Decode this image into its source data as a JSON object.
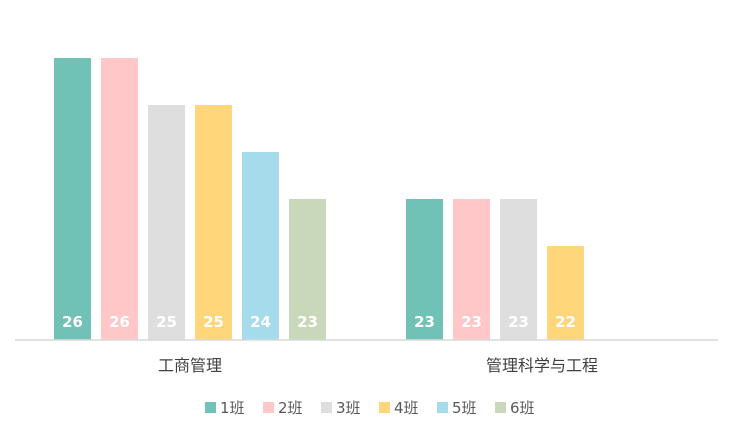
{
  "chart_data": {
    "type": "bar",
    "title": "",
    "xlabel": "",
    "ylabel": "",
    "grid": false,
    "legend": "bottom",
    "categories": [
      "工商管理",
      "管理科学与工程"
    ],
    "series": [
      {
        "name": "1班",
        "color": "#70C1B6",
        "values": [
          26,
          23
        ]
      },
      {
        "name": "2班",
        "color": "#FFC7C8",
        "values": [
          26,
          23
        ]
      },
      {
        "name": "3班",
        "color": "#DEDEDE",
        "values": [
          25,
          23
        ]
      },
      {
        "name": "4班",
        "color": "#FFD67A",
        "values": [
          25,
          22
        ]
      },
      {
        "name": "5班",
        "color": "#A6DBEC",
        "values": [
          24,
          null
        ]
      },
      {
        "name": "6班",
        "color": "#C9D7BB",
        "values": [
          23,
          null
        ]
      }
    ],
    "ylim": [
      20,
      27
    ]
  }
}
